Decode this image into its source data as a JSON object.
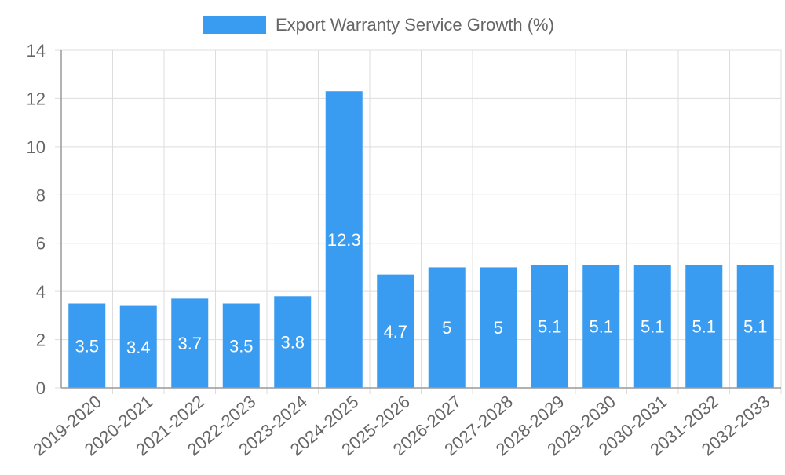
{
  "chart_data": {
    "type": "bar",
    "categories": [
      "2019-2020",
      "2020-2021",
      "2021-2022",
      "2022-2023",
      "2023-2024",
      "2024-2025",
      "2025-2026",
      "2026-2027",
      "2027-2028",
      "2028-2029",
      "2029-2030",
      "2030-2031",
      "2031-2032",
      "2032-2033"
    ],
    "series": [
      {
        "name": "Export Warranty Service Growth (%)",
        "values": [
          3.5,
          3.4,
          3.7,
          3.5,
          3.8,
          12.3,
          4.7,
          5,
          5,
          5.1,
          5.1,
          5.1,
          5.1,
          5.1
        ],
        "color": "#3a9cf0"
      }
    ],
    "data_labels": [
      "3.5",
      "3.4",
      "3.7",
      "3.5",
      "3.8",
      "12.3",
      "4.7",
      "5",
      "5",
      "5.1",
      "5.1",
      "5.1",
      "5.1",
      "5.1"
    ],
    "ylim": [
      0,
      14
    ],
    "yticks": [
      "0",
      "2",
      "4",
      "6",
      "8",
      "10",
      "12",
      "14"
    ],
    "xlabel": "",
    "ylabel": "",
    "grid": true,
    "legend_position": "top-center",
    "colors": {
      "bar": "#3a9cf0",
      "grid": "#dddddd",
      "axis": "#999999",
      "tick_text": "#666666",
      "data_label": "#ffffff"
    }
  }
}
